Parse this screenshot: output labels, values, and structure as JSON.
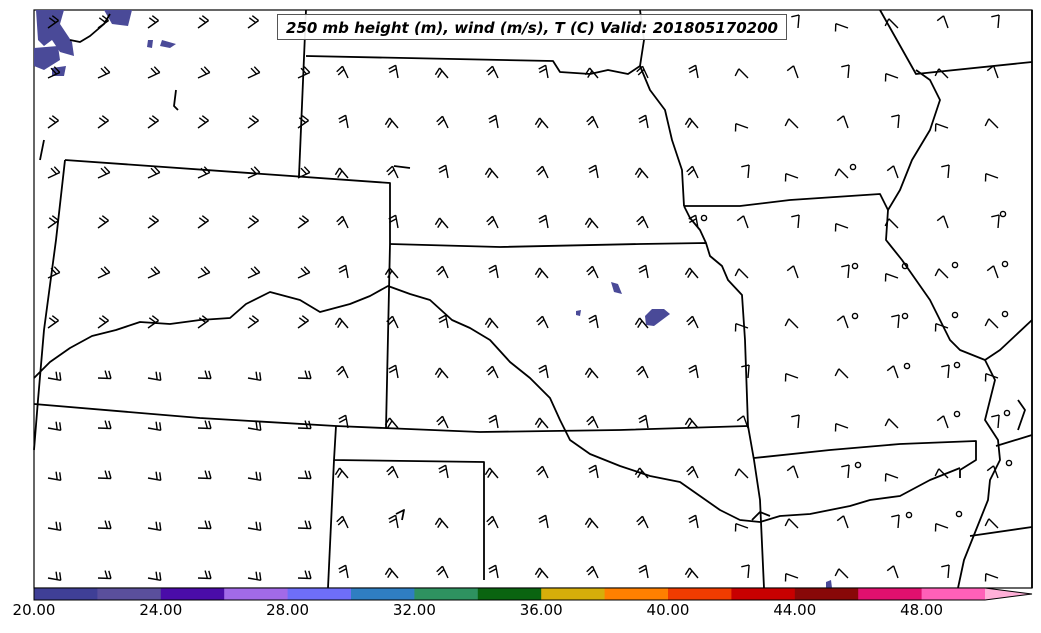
{
  "title": "250 mb height (m), wind (m/s), T (C) Valid: 201805170200",
  "colorbar": {
    "ticks": [
      "20.00",
      "24.00",
      "28.00",
      "32.00",
      "36.00",
      "40.00",
      "44.00",
      "48.00"
    ],
    "colors": [
      "#3f3f96",
      "#5a4f9c",
      "#4a0ca8",
      "#a26ae8",
      "#6e6ef8",
      "#2f7ec2",
      "#2e9260",
      "#0a6410",
      "#d6ae0a",
      "#ff8000",
      "#f03c00",
      "#c80000",
      "#880808",
      "#e0106e",
      "#ff60b8",
      "#ffb0d8"
    ]
  }
}
